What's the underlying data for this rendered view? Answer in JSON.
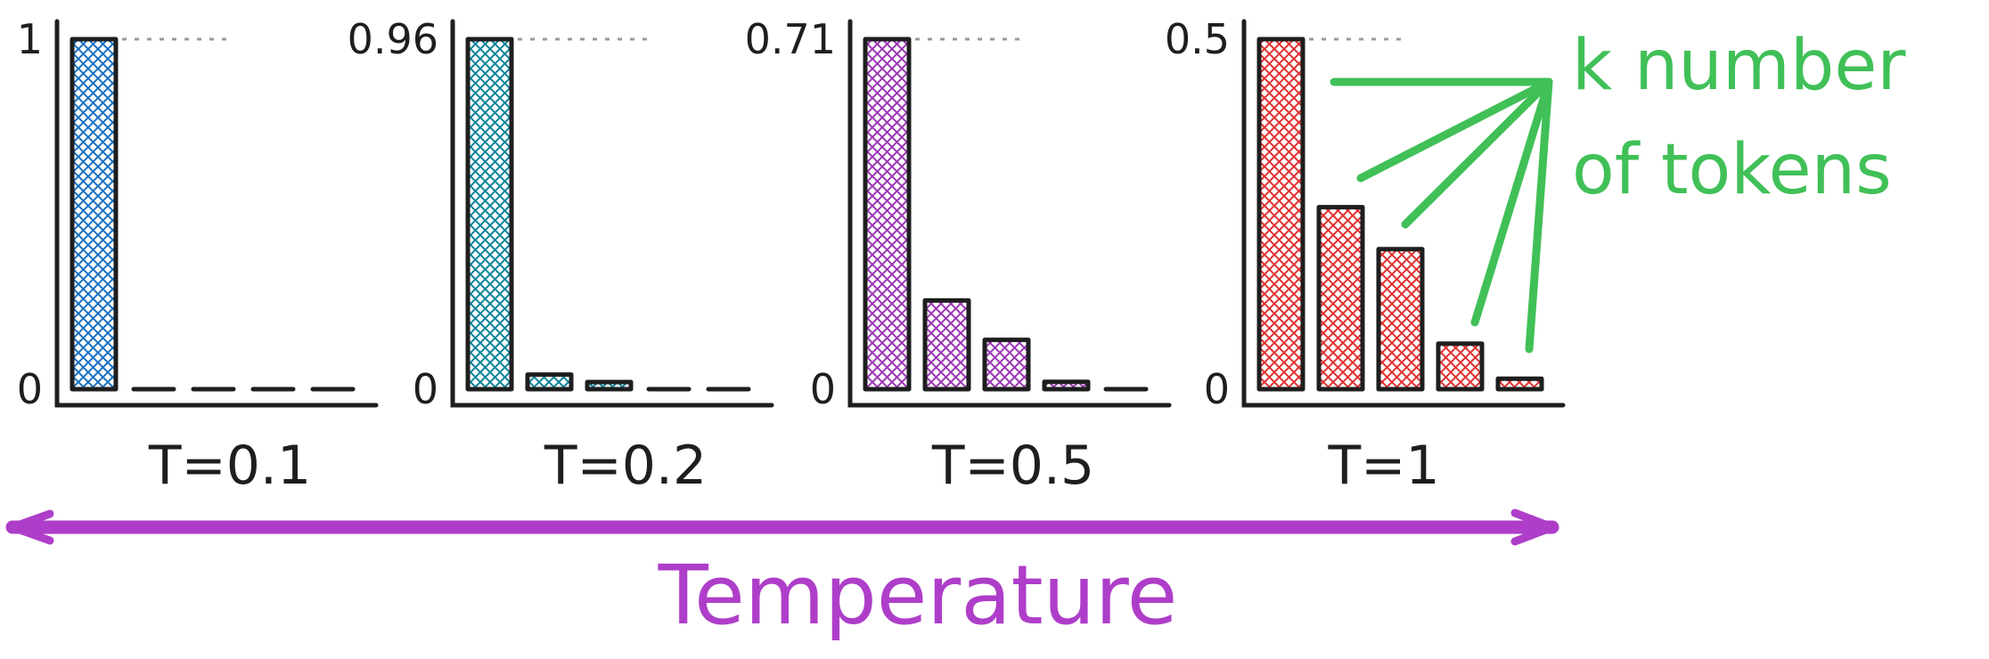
{
  "chart_data": [
    {
      "type": "bar",
      "xlabel": "T=0.1",
      "y_ticks": [
        "0",
        "1"
      ],
      "ylim": [
        0,
        1
      ],
      "values": [
        1,
        0,
        0,
        0,
        0
      ],
      "color": "#1971c2",
      "grid": false
    },
    {
      "type": "bar",
      "xlabel": "T=0.2",
      "y_ticks": [
        "0",
        "0.96"
      ],
      "ylim": [
        0,
        0.96
      ],
      "values": [
        0.96,
        0.04,
        0.015,
        0,
        0
      ],
      "color": "#0c8599",
      "grid": false
    },
    {
      "type": "bar",
      "xlabel": "T=0.5",
      "y_ticks": [
        "0",
        "0.71"
      ],
      "ylim": [
        0,
        0.71
      ],
      "values": [
        0.71,
        0.18,
        0.1,
        0.015,
        0
      ],
      "color": "#9c36b5",
      "grid": false
    },
    {
      "type": "bar",
      "xlabel": "T=1",
      "y_ticks": [
        "0",
        "0.5"
      ],
      "ylim": [
        0,
        0.5
      ],
      "values": [
        0.5,
        0.26,
        0.2,
        0.065,
        0.015
      ],
      "color": "#e03131",
      "grid": false
    }
  ],
  "annotation": {
    "line1": "k number",
    "line2": "of tokens",
    "color": "#40c057"
  },
  "temperature_axis": {
    "label": "Temperature",
    "color": "#ae3ec9"
  }
}
